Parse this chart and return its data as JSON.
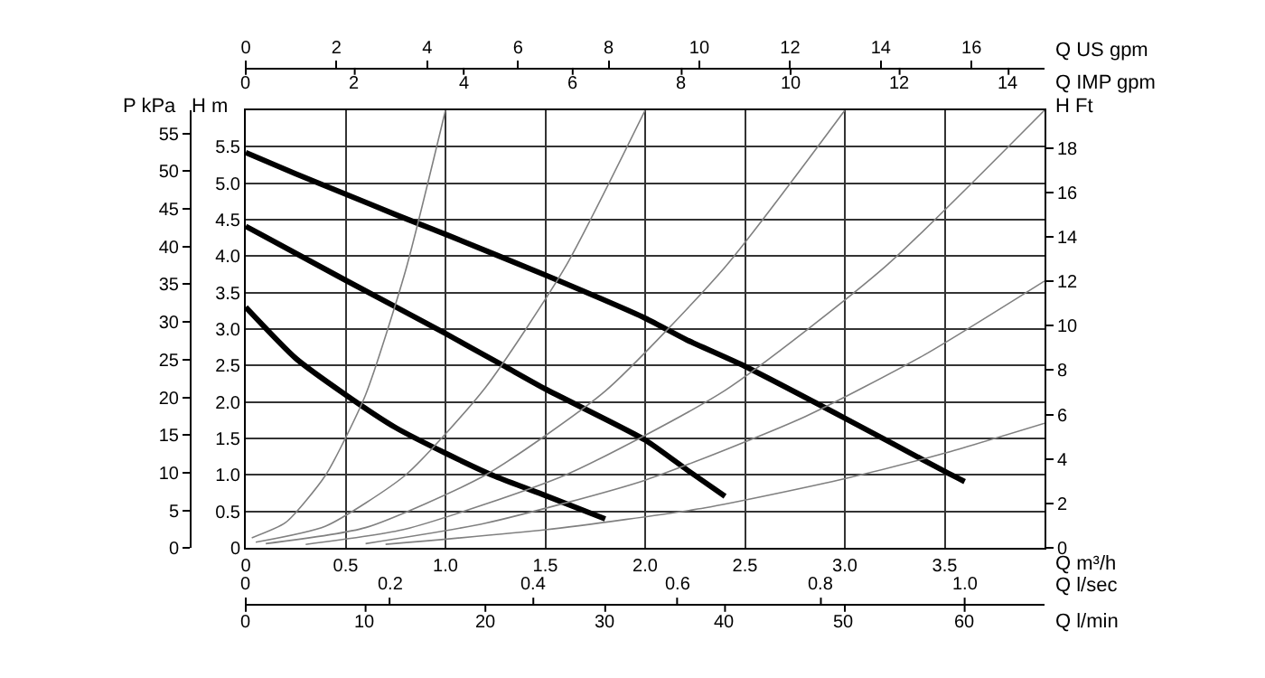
{
  "chart_data": {
    "type": "line",
    "xlabel": "Q m³/h",
    "x2label": "Q US gpm",
    "ylabel": "H m",
    "y2label": "H Ft",
    "y3label": "P kPa",
    "xlim": [
      0,
      4.0
    ],
    "xticks": [
      0,
      {
        "value": 0.5,
        "label": "0.5"
      },
      {
        "value": 1,
        "label": "1.0"
      },
      {
        "value": 1.5,
        "label": "1.5"
      },
      {
        "value": 2,
        "label": "2.0"
      },
      {
        "value": 2.5,
        "label": "2.5"
      },
      {
        "value": 3,
        "label": "3.0"
      },
      {
        "value": 3.5,
        "label": "3.5"
      }
    ],
    "x2lim": [
      0,
      17.61
    ],
    "x2ticks": [
      0,
      2,
      4,
      6,
      8,
      10,
      12,
      14,
      16
    ],
    "ylim": [
      0,
      6.0
    ],
    "yticks": [
      0,
      {
        "value": 0.5,
        "label": "0.5"
      },
      {
        "value": 1,
        "label": "1.0"
      },
      {
        "value": 1.5,
        "label": "1.5"
      },
      {
        "value": 2,
        "label": "2.0"
      },
      {
        "value": 2.5,
        "label": "2.5"
      },
      {
        "value": 3,
        "label": "3.0"
      },
      {
        "value": 3.5,
        "label": "3.5"
      },
      {
        "value": 4,
        "label": "4.0"
      },
      {
        "value": 4.5,
        "label": "4.5"
      },
      {
        "value": 5,
        "label": "5.0"
      },
      {
        "value": 5.5,
        "label": "5.5"
      }
    ],
    "y2lim": [
      0,
      19.69
    ],
    "y2ticks": [
      0,
      2,
      4,
      6,
      8,
      10,
      12,
      14,
      16,
      18
    ],
    "y3lim": [
      0,
      58.1
    ],
    "y3ticks": [
      0,
      5,
      10,
      15,
      20,
      25,
      30,
      35,
      40,
      45,
      50,
      55
    ],
    "grid": true,
    "annotations": [
      "Q l/sec",
      "0",
      "0.2",
      "0.4",
      "0.6",
      "0.8",
      "1.0",
      "Q l/min",
      "0",
      "10",
      "20",
      "30",
      "40",
      "50",
      "60",
      "Q IMP gpm",
      "0",
      "2",
      "4",
      "6",
      "8",
      "10",
      "12",
      "14"
    ],
    "series": [
      {
        "color": "#000000",
        "x": [
          0,
          0.25,
          0.5,
          0.75,
          1.0,
          1.5,
          2.0,
          2.21,
          2.5,
          3.0,
          3.5,
          3.6
        ],
        "values": [
          5.42,
          5.13,
          4.85,
          4.57,
          4.3,
          3.74,
          3.15,
          2.85,
          2.49,
          1.78,
          1.05,
          0.91
        ]
      },
      {
        "color": "#000000",
        "x": [
          0,
          0.5,
          1.0,
          1.29,
          1.5,
          2.0,
          2.21,
          2.4
        ],
        "values": [
          4.41,
          3.67,
          2.94,
          2.5,
          2.18,
          1.48,
          1.07,
          0.71
        ]
      },
      {
        "color": "#000000",
        "x": [
          0,
          0.25,
          0.5,
          0.75,
          1.0,
          1.25,
          1.5,
          1.8
        ],
        "values": [
          3.3,
          2.6,
          2.1,
          1.65,
          1.3,
          0.98,
          0.72,
          0.4
        ]
      },
      {
        "color": "#808080",
        "x": [
          0.03,
          0.2,
          0.4,
          0.6,
          0.8,
          1.0
        ],
        "values": [
          0.14,
          0.35,
          1.0,
          2.1,
          3.8,
          6.0
        ]
      },
      {
        "color": "#808080",
        "x": [
          0.05,
          0.4,
          0.8,
          1.2,
          1.6,
          2.0
        ],
        "values": [
          0.08,
          0.3,
          1.0,
          2.2,
          3.85,
          6.0
        ]
      },
      {
        "color": "#808080",
        "x": [
          0.1,
          0.6,
          1.2,
          1.8,
          2.4,
          3.0
        ],
        "values": [
          0.06,
          0.28,
          1.0,
          2.15,
          3.85,
          6.0
        ]
      },
      {
        "color": "#808080",
        "x": [
          0.3,
          0.8,
          1.6,
          2.4,
          3.2,
          4.0
        ],
        "values": [
          0.05,
          0.26,
          1.0,
          2.16,
          3.85,
          6.0
        ]
      },
      {
        "color": "#808080",
        "x": [
          0.6,
          1.2,
          2.0,
          2.8,
          3.4,
          4.0
        ],
        "values": [
          0.06,
          0.34,
          0.93,
          1.8,
          2.65,
          3.66
        ]
      },
      {
        "color": "#808080",
        "x": [
          0.7,
          1.5,
          2.3,
          3.0,
          3.5,
          4.0
        ],
        "values": [
          0.05,
          0.25,
          0.55,
          0.95,
          1.3,
          1.71
        ]
      }
    ]
  }
}
